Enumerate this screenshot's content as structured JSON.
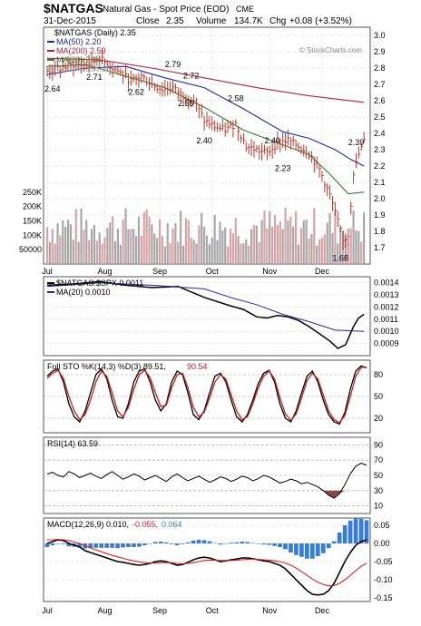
{
  "header": {
    "symbol": "$NATGAS",
    "name": "Natural Gas - Spot Price (EOD)",
    "exchange": "CME",
    "date": "31-Dec-2015",
    "close_label": "Close",
    "close_value": "2.35",
    "volume_label": "Volume",
    "volume_value": "134.7K",
    "chg_label": "Chg",
    "chg_value": "+0.08 (+3.52%)",
    "watermark": "© StockCharts.com"
  },
  "colors": {
    "price_bar": "#c0392b",
    "ma50": "#1f2a9c",
    "ma200": "#b0243a",
    "ma20": "#2e7d32",
    "volume_up": "#d9a3a8",
    "volume_down": "#a8a8a8",
    "sto_k": "#000000",
    "sto_d": "#d11a1a",
    "rsi_line": "#000000",
    "rsi_fill": "#8b4a4a",
    "macd_line": "#000000",
    "signal_line": "#e02020",
    "histogram": "#3a7bd5",
    "grid": "#c8c8c8"
  },
  "chart_data": [
    {
      "type": "line",
      "panel": "price",
      "title": "$NATGAS (Daily) 2.35",
      "legend": [
        {
          "label": "MA(50) 2.20",
          "color": "#1f2a9c"
        },
        {
          "label": "MA(200) 2.59",
          "color": "#b0243a"
        },
        {
          "label": "MA(20) 2.04",
          "color": "#2e7d32"
        },
        {
          "label": "Volume 134,654",
          "color": "#a8a8a8"
        }
      ],
      "ylim": [
        1.6,
        3.05
      ],
      "yticks": [
        "3.0",
        "2.9",
        "2.8",
        "2.7",
        "2.6",
        "2.5",
        "2.4",
        "2.3",
        "2.2",
        "2.1",
        "2.0",
        "1.9",
        "1.8",
        "1.7"
      ],
      "volume_ticks": [
        "250K",
        "200K",
        "150K",
        "100K",
        "50000"
      ],
      "volume_ylim": [
        0,
        300000
      ],
      "x_months": [
        {
          "label": "Jul",
          "day": 0
        },
        {
          "label": "Aug",
          "day": 22
        },
        {
          "label": "Sep",
          "day": 43
        },
        {
          "label": "Oct",
          "day": 63
        },
        {
          "label": "Nov",
          "day": 85
        },
        {
          "label": "Dec",
          "day": 105
        }
      ],
      "annotations": [
        {
          "day": 2,
          "value": 2.64,
          "label": "2.64"
        },
        {
          "day": 18,
          "value": 2.71,
          "label": "2.71"
        },
        {
          "day": 34,
          "value": 2.62,
          "label": "2.62"
        },
        {
          "day": 48,
          "value": 2.79,
          "label": "2.79"
        },
        {
          "day": 55,
          "value": 2.72,
          "label": "2.72"
        },
        {
          "day": 53,
          "value": 2.55,
          "label": "2.55"
        },
        {
          "day": 60,
          "value": 2.4,
          "label": "2.40"
        },
        {
          "day": 72,
          "value": 2.58,
          "label": "2.58"
        },
        {
          "day": 86,
          "value": 2.4,
          "label": "2.40"
        },
        {
          "day": 90,
          "value": 2.23,
          "label": "2.23"
        },
        {
          "day": 118,
          "value": 2.39,
          "label": "2.39"
        },
        {
          "day": 112,
          "value": 1.68,
          "label": "1.68"
        }
      ],
      "series": [
        {
          "name": "Price",
          "points": [
            [
              0,
              2.78
            ],
            [
              5,
              2.8
            ],
            [
              10,
              2.82
            ],
            [
              15,
              2.82
            ],
            [
              20,
              2.86
            ],
            [
              24,
              2.81
            ],
            [
              28,
              2.77
            ],
            [
              32,
              2.72
            ],
            [
              36,
              2.75
            ],
            [
              40,
              2.7
            ],
            [
              44,
              2.67
            ],
            [
              48,
              2.68
            ],
            [
              52,
              2.63
            ],
            [
              56,
              2.6
            ],
            [
              60,
              2.48
            ],
            [
              64,
              2.44
            ],
            [
              68,
              2.42
            ],
            [
              72,
              2.46
            ],
            [
              76,
              2.32
            ],
            [
              80,
              2.3
            ],
            [
              84,
              2.28
            ],
            [
              88,
              2.34
            ],
            [
              92,
              2.36
            ],
            [
              96,
              2.32
            ],
            [
              100,
              2.28
            ],
            [
              104,
              2.18
            ],
            [
              108,
              2.02
            ],
            [
              111,
              1.86
            ],
            [
              113,
              1.74
            ],
            [
              115,
              1.78
            ],
            [
              117,
              2.16
            ],
            [
              119,
              2.27
            ],
            [
              121,
              2.35
            ]
          ]
        },
        {
          "name": "MA(50)",
          "points": [
            [
              0,
              2.76
            ],
            [
              15,
              2.8
            ],
            [
              30,
              2.81
            ],
            [
              45,
              2.74
            ],
            [
              60,
              2.68
            ],
            [
              75,
              2.55
            ],
            [
              90,
              2.41
            ],
            [
              100,
              2.37
            ],
            [
              110,
              2.3
            ],
            [
              116,
              2.24
            ],
            [
              121,
              2.2
            ]
          ]
        },
        {
          "name": "MA(200)",
          "points": [
            [
              0,
              2.86
            ],
            [
              20,
              2.85
            ],
            [
              40,
              2.8
            ],
            [
              60,
              2.74
            ],
            [
              80,
              2.68
            ],
            [
              100,
              2.63
            ],
            [
              121,
              2.59
            ]
          ]
        },
        {
          "name": "MA(20)",
          "points": [
            [
              0,
              2.81
            ],
            [
              15,
              2.82
            ],
            [
              30,
              2.75
            ],
            [
              45,
              2.68
            ],
            [
              60,
              2.56
            ],
            [
              75,
              2.42
            ],
            [
              90,
              2.33
            ],
            [
              100,
              2.27
            ],
            [
              108,
              2.15
            ],
            [
              115,
              2.03
            ],
            [
              121,
              2.04
            ]
          ]
        }
      ]
    },
    {
      "type": "line",
      "panel": "ratio",
      "legend": [
        {
          "label": "$NATGAS:$SPX 0.0011",
          "color": "#000000"
        },
        {
          "label": "MA(20) 0.0010",
          "color": "#1f2a9c"
        }
      ],
      "ylim": [
        0.0008,
        0.00145
      ],
      "yticks": [
        "0.0014",
        "0.0013",
        "0.0012",
        "0.0011",
        "0.0010",
        "0.0009"
      ],
      "series": [
        {
          "name": "$NATGAS:$SPX",
          "points": [
            [
              0,
              0.00138
            ],
            [
              10,
              0.00139
            ],
            [
              20,
              0.00141
            ],
            [
              30,
              0.00138
            ],
            [
              40,
              0.00136
            ],
            [
              50,
              0.00137
            ],
            [
              60,
              0.00128
            ],
            [
              70,
              0.00121
            ],
            [
              75,
              0.00118
            ],
            [
              80,
              0.00112
            ],
            [
              84,
              0.00111
            ],
            [
              88,
              0.00113
            ],
            [
              92,
              0.00112
            ],
            [
              96,
              0.00109
            ],
            [
              100,
              0.00104
            ],
            [
              104,
              0.00098
            ],
            [
              108,
              0.00092
            ],
            [
              111,
              0.00086
            ],
            [
              114,
              0.00089
            ],
            [
              117,
              0.00104
            ],
            [
              119,
              0.00111
            ],
            [
              121,
              0.00114
            ]
          ]
        },
        {
          "name": "MA(20)",
          "points": [
            [
              0,
              0.00137
            ],
            [
              20,
              0.0014
            ],
            [
              40,
              0.00138
            ],
            [
              60,
              0.00135
            ],
            [
              70,
              0.00128
            ],
            [
              80,
              0.00122
            ],
            [
              90,
              0.00114
            ],
            [
              100,
              0.00108
            ],
            [
              110,
              0.00101
            ],
            [
              121,
              0.001
            ]
          ]
        }
      ]
    },
    {
      "type": "line",
      "panel": "stochastic",
      "legend": [
        {
          "label": "Full STO %K(14,3) %D(3) 89.51,",
          "color": "#000000"
        },
        {
          "label": "90.54",
          "color": "#d11a1a"
        }
      ],
      "ylim": [
        0,
        100
      ],
      "yticks": [
        "80",
        "50",
        "20"
      ],
      "series": [
        {
          "name": "%K",
          "values": [
            78,
            85,
            88,
            70,
            40,
            22,
            15,
            30,
            55,
            80,
            88,
            75,
            45,
            22,
            20,
            40,
            70,
            85,
            88,
            70,
            45,
            30,
            40,
            70,
            85,
            80,
            55,
            25,
            18,
            30,
            55,
            78,
            82,
            70,
            45,
            22,
            15,
            25,
            45,
            68,
            82,
            86,
            70,
            40,
            20,
            15,
            30,
            55,
            78,
            85,
            70,
            45,
            25,
            15,
            12,
            28,
            60,
            85,
            92,
            89.5
          ]
        },
        {
          "name": "%D",
          "values": [
            75,
            82,
            86,
            75,
            50,
            30,
            18,
            25,
            45,
            70,
            85,
            78,
            55,
            30,
            22,
            35,
            60,
            80,
            86,
            76,
            55,
            36,
            38,
            62,
            80,
            82,
            62,
            35,
            22,
            28,
            48,
            70,
            80,
            74,
            52,
            30,
            18,
            22,
            40,
            62,
            78,
            85,
            74,
            48,
            26,
            17,
            26,
            48,
            72,
            82,
            74,
            52,
            30,
            18,
            14,
            24,
            50,
            78,
            90,
            90.5
          ]
        }
      ]
    },
    {
      "type": "area",
      "panel": "rsi",
      "legend": [
        {
          "label": "RSI(14) 63.59",
          "color": "#000000"
        }
      ],
      "ylim": [
        0,
        100
      ],
      "yticks": [
        "90",
        "70",
        "50",
        "30",
        "10"
      ],
      "series": [
        {
          "name": "RSI(14)",
          "values": [
            52,
            54,
            50,
            48,
            55,
            52,
            47,
            50,
            53,
            49,
            46,
            51,
            55,
            50,
            45,
            48,
            52,
            49,
            44,
            47,
            50,
            46,
            42,
            48,
            52,
            47,
            43,
            46,
            49,
            45,
            41,
            44,
            48,
            46,
            42,
            45,
            49,
            47,
            43,
            46,
            50,
            48,
            44,
            40,
            42,
            45,
            43,
            39,
            41,
            38,
            35,
            30,
            24,
            20,
            26,
            38,
            52,
            62,
            66,
            63.59
          ]
        }
      ]
    },
    {
      "type": "bar",
      "panel": "macd",
      "legend": [
        {
          "label": "MACD(12,26,9) 0.010,",
          "color": "#000000"
        },
        {
          "label": "-0.055,",
          "color": "#e02020"
        },
        {
          "label": "0.064",
          "color": "#3a7bd5"
        }
      ],
      "ylim": [
        -0.16,
        0.07
      ],
      "yticks": [
        "0.05",
        "0.00",
        "-0.05",
        "-0.10",
        "-0.15"
      ],
      "series": [
        {
          "name": "MACD",
          "values": [
            0.0,
            0.005,
            0.01,
            0.008,
            0.0,
            -0.005,
            -0.01,
            -0.02,
            -0.025,
            -0.03,
            -0.035,
            -0.04,
            -0.045,
            -0.05,
            -0.052,
            -0.055,
            -0.058,
            -0.06,
            -0.058,
            -0.055,
            -0.05,
            -0.048,
            -0.05,
            -0.055,
            -0.06,
            -0.058,
            -0.052,
            -0.045,
            -0.04,
            -0.038,
            -0.04,
            -0.045,
            -0.05,
            -0.048,
            -0.045,
            -0.043,
            -0.04,
            -0.04,
            -0.042,
            -0.045,
            -0.048,
            -0.05,
            -0.055,
            -0.06,
            -0.07,
            -0.085,
            -0.1,
            -0.115,
            -0.13,
            -0.14,
            -0.142,
            -0.14,
            -0.13,
            -0.11,
            -0.08,
            -0.05,
            -0.025,
            -0.005,
            0.005,
            0.01
          ]
        },
        {
          "name": "Signal",
          "values": [
            0.01,
            0.01,
            0.011,
            0.01,
            0.008,
            0.004,
            0.0,
            -0.006,
            -0.012,
            -0.018,
            -0.023,
            -0.028,
            -0.033,
            -0.037,
            -0.041,
            -0.045,
            -0.048,
            -0.051,
            -0.053,
            -0.054,
            -0.054,
            -0.053,
            -0.053,
            -0.053,
            -0.055,
            -0.056,
            -0.055,
            -0.053,
            -0.05,
            -0.047,
            -0.046,
            -0.046,
            -0.047,
            -0.047,
            -0.047,
            -0.046,
            -0.045,
            -0.044,
            -0.043,
            -0.044,
            -0.045,
            -0.046,
            -0.048,
            -0.05,
            -0.054,
            -0.06,
            -0.068,
            -0.078,
            -0.088,
            -0.098,
            -0.107,
            -0.113,
            -0.117,
            -0.116,
            -0.11,
            -0.1,
            -0.088,
            -0.075,
            -0.063,
            -0.055
          ]
        },
        {
          "name": "Histogram",
          "values": [
            -0.01,
            -0.005,
            -0.001,
            -0.002,
            -0.008,
            -0.009,
            -0.01,
            -0.014,
            -0.013,
            -0.012,
            -0.012,
            -0.012,
            -0.012,
            -0.013,
            -0.011,
            -0.01,
            -0.01,
            -0.009,
            -0.005,
            -0.001,
            0.004,
            0.005,
            0.003,
            -0.002,
            -0.005,
            -0.002,
            0.003,
            0.008,
            0.01,
            0.009,
            0.006,
            0.001,
            -0.003,
            -0.001,
            0.002,
            0.003,
            0.005,
            0.004,
            0.001,
            -0.001,
            -0.003,
            -0.004,
            -0.007,
            -0.01,
            -0.016,
            -0.025,
            -0.032,
            -0.037,
            -0.042,
            -0.042,
            -0.035,
            -0.027,
            -0.013,
            0.006,
            0.03,
            0.05,
            0.063,
            0.07,
            0.068,
            0.064
          ]
        }
      ]
    }
  ]
}
